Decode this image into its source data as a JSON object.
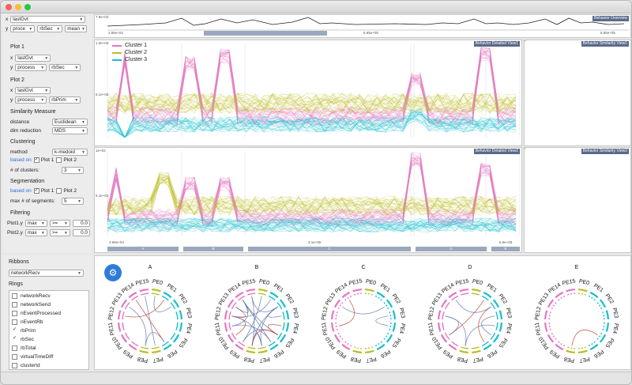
{
  "window": {
    "buttons": [
      "close",
      "minimize",
      "zoom"
    ],
    "colors": {
      "close": "#fd5f57",
      "minimize": "#febc2e",
      "zoom": "#28c840"
    }
  },
  "axes_controls": {
    "x_label": "x",
    "x_value": "lastGvt",
    "y_label": "y",
    "y_value1": "proce",
    "y_value2": "rbSec",
    "y_value3": "mean"
  },
  "plot1": {
    "title": "Plot 1",
    "x_label": "x",
    "x_value": "lastGvt",
    "y_label": "y",
    "y_value1": "process",
    "y_value2": "rbSec"
  },
  "plot2": {
    "title": "Plot 2",
    "x_label": "x",
    "x_value": "lastGvt",
    "y_label": "y",
    "y_value1": "process",
    "y_value2": "rbPrim"
  },
  "similarity": {
    "title": "Similarity Measure",
    "distance_label": "distance",
    "distance_value": "Euclidean",
    "dimred_label": "dim reduction",
    "dimred_value": "MDS"
  },
  "clustering": {
    "title": "Clustering",
    "method_label": "method",
    "method_value": "k-medoid",
    "based_on_label": "based on",
    "plot1_label": "Plot 1",
    "plot2_label": "Plot 2",
    "clusters_label": "# of clusters:",
    "clusters_value": "3"
  },
  "segmentation": {
    "title": "Segmentation",
    "based_on_label": "based on",
    "plot1_label": "Plot 1",
    "plot2_label": "Plot 2",
    "max_label": "max # of segments:",
    "max_value": "5"
  },
  "filtering": {
    "title": "Filtering",
    "row1": {
      "label": "Plot1.y",
      "agg": "max",
      "op": ">=",
      "value": "0.0"
    },
    "row2": {
      "label": "Plot2.y",
      "agg": "max",
      "op": ">=",
      "value": "0.0"
    }
  },
  "ribbons": {
    "title": "Ribbons",
    "value": "networkRecv"
  },
  "rings": {
    "title": "Rings",
    "items": [
      {
        "label": "networkRecv",
        "checked": false
      },
      {
        "label": "networkSend",
        "checked": false
      },
      {
        "label": "nEventProcessed",
        "checked": false
      },
      {
        "label": "nEventRb",
        "checked": false
      },
      {
        "label": "rbPrim",
        "checked": true
      },
      {
        "label": "rbSec",
        "checked": true
      },
      {
        "label": "rbTotal",
        "checked": false
      },
      {
        "label": "virtualTimeDiff",
        "checked": false
      },
      {
        "label": "clusterId",
        "checked": false
      }
    ]
  },
  "views": {
    "overview_tag": "Behavior Overview",
    "detail1_tag": "Behavior Detailed View1",
    "detail2_tag": "Behavior Detailed View2",
    "sim1_tag": "Behavior Similarity View1",
    "sim2_tag": "Behavior Similarity View2",
    "overview_ticks": [
      "2.86e+04",
      "5.65e+05",
      "8.95e+05"
    ],
    "overview_y": "7.9e+03",
    "detail1_y_top": "1.0e+03",
    "detail1_y_mid": "5.1e+02",
    "detail2_y_top": "1e+03",
    "detail2_y_mid": "5.1e+02",
    "segment_labels": [
      "A",
      "B",
      "C",
      "D",
      "E"
    ],
    "x_mid_tick": "3.1e+05",
    "x_left_tick": "2.86e+04",
    "x_right_tick": "6.0e+05"
  },
  "legend": {
    "items": [
      {
        "label": "Cluster 1",
        "color": "#e377c2"
      },
      {
        "label": "Cluster 2",
        "color": "#bcbd22"
      },
      {
        "label": "Cluster 3",
        "color": "#17becf"
      }
    ]
  },
  "chords": {
    "titles": [
      "A",
      "B",
      "C",
      "D",
      "E"
    ],
    "pe_labels": [
      "PE0",
      "PE1",
      "PE2",
      "PE3",
      "PE4",
      "PE5",
      "PE6",
      "PE7",
      "PE8",
      "PE9",
      "PE10",
      "PE11",
      "PE12",
      "PE13",
      "PE14",
      "PE15"
    ],
    "link_color": "#5b6fa8",
    "gear_icon_color": "#2f7bd8"
  }
}
